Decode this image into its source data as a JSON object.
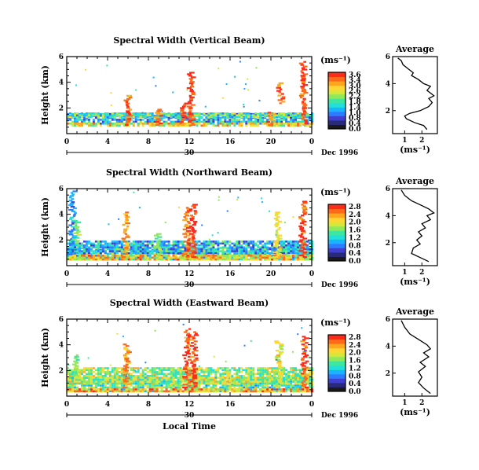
{
  "colors": {
    "colorbar": [
      "#1a1a1a",
      "#2a2a7a",
      "#3f3fd0",
      "#2d7bff",
      "#19b4ff",
      "#22e0d8",
      "#3ee6a0",
      "#8fe85a",
      "#d8e63a",
      "#ffd633",
      "#ffa61f",
      "#ff6a1a",
      "#ff2a1a"
    ]
  },
  "chart_data": [
    {
      "type": "heatmap",
      "title": "Spectral Width (Vertical Beam)",
      "ylabel": "Height (km)",
      "ylim": [
        0,
        6
      ],
      "yticks": [
        "2",
        "4",
        "6"
      ],
      "xlim": [
        0,
        24
      ],
      "xticks": [
        "0",
        "4",
        "8",
        "12",
        "16",
        "20",
        "0"
      ],
      "date_row": {
        "mid_label": "30",
        "end_label": "Dec 1996"
      },
      "colorbar": {
        "unit": "(ms⁻¹)",
        "labels": [
          "3.6",
          "3.4",
          "3.0",
          "2.6",
          "2.2",
          "1.8",
          "1.4",
          "1.0",
          "0.8",
          "0.4",
          "0.0"
        ]
      },
      "bands": [
        {
          "x": [
            0,
            24
          ],
          "y": [
            0.7,
            1.5
          ],
          "level": 0.35
        },
        {
          "x": [
            0,
            24
          ],
          "y": [
            1.2,
            1.55
          ],
          "level": 0.5
        },
        {
          "x": [
            0,
            24
          ],
          "y": [
            0.55,
            0.85
          ],
          "level": 0.7
        }
      ],
      "spikes": [
        {
          "x": 6.0,
          "y": [
            0.6,
            3.0
          ],
          "level": 0.95
        },
        {
          "x": 9.0,
          "y": [
            0.6,
            1.9
          ],
          "level": 0.9
        },
        {
          "x": 11.5,
          "y": [
            0.6,
            2.4
          ],
          "level": 0.95
        },
        {
          "x": 12.2,
          "y": [
            0.6,
            4.8
          ],
          "level": 0.97
        },
        {
          "x": 20.0,
          "y": [
            0.6,
            1.6
          ],
          "level": 0.9
        },
        {
          "x": 21.0,
          "y": [
            2.3,
            3.9
          ],
          "level": 0.92
        },
        {
          "x": 23.2,
          "y": [
            0.6,
            5.6
          ],
          "level": 0.97
        }
      ],
      "profile": {
        "title": "Average",
        "xlabel": "(ms⁻¹)",
        "xticks": [
          "1",
          "2"
        ],
        "yticks": [
          "2",
          "4",
          "6"
        ],
        "xlim": [
          0.3,
          2.9
        ],
        "ylim": [
          0.3,
          6
        ],
        "x": [
          2.3,
          2.1,
          1.6,
          1.1,
          1.0,
          1.3,
          1.9,
          2.4,
          2.6,
          2.4,
          2.7,
          2.5,
          2.3,
          2.5,
          2.1,
          1.8,
          1.4,
          1.5,
          1.2,
          0.9,
          0.8,
          0.6
        ],
        "y": [
          0.6,
          0.9,
          1.1,
          1.4,
          1.6,
          1.8,
          2.0,
          2.3,
          2.6,
          2.9,
          3.1,
          3.3,
          3.5,
          3.8,
          4.0,
          4.3,
          4.6,
          4.8,
          5.1,
          5.4,
          5.7,
          5.9
        ]
      }
    },
    {
      "type": "heatmap",
      "title": "Spectral Width (Northward Beam)",
      "ylabel": "Height (km)",
      "ylim": [
        0,
        6
      ],
      "yticks": [
        "2",
        "4",
        "6"
      ],
      "xlim": [
        0,
        24
      ],
      "xticks": [
        "0",
        "4",
        "8",
        "12",
        "16",
        "20",
        "0"
      ],
      "date_row": {
        "mid_label": "30",
        "end_label": "Dec 1996"
      },
      "colorbar": {
        "unit": "(ms⁻¹)",
        "labels": [
          "2.8",
          "2.4",
          "2.0",
          "1.6",
          "1.2",
          "0.8",
          "0.4",
          "0.0"
        ]
      },
      "bands": [
        {
          "x": [
            0,
            24
          ],
          "y": [
            0.4,
            1.3
          ],
          "level": 0.45
        },
        {
          "x": [
            0,
            24
          ],
          "y": [
            0.9,
            1.9
          ],
          "level": 0.35
        },
        {
          "x": [
            0,
            24
          ],
          "y": [
            0.4,
            0.8
          ],
          "level": 0.75
        }
      ],
      "spikes": [
        {
          "x": 0.6,
          "y": [
            0.8,
            5.8
          ],
          "level": 0.3
        },
        {
          "x": 1.0,
          "y": [
            1.5,
            3.5
          ],
          "level": 0.55
        },
        {
          "x": 5.8,
          "y": [
            0.6,
            4.2
          ],
          "level": 0.85
        },
        {
          "x": 9.0,
          "y": [
            0.6,
            2.5
          ],
          "level": 0.6
        },
        {
          "x": 11.8,
          "y": [
            0.6,
            4.5
          ],
          "level": 0.92
        },
        {
          "x": 12.4,
          "y": [
            0.6,
            4.8
          ],
          "level": 0.97
        },
        {
          "x": 20.7,
          "y": [
            0.6,
            4.2
          ],
          "level": 0.7
        },
        {
          "x": 23.1,
          "y": [
            0.6,
            5.0
          ],
          "level": 0.97
        }
      ],
      "profile": {
        "title": "Average",
        "xlabel": "(ms⁻¹)",
        "xticks": [
          "1",
          "2"
        ],
        "yticks": [
          "2",
          "4",
          "6"
        ],
        "xlim": [
          0.3,
          2.9
        ],
        "ylim": [
          0.3,
          6
        ],
        "x": [
          2.4,
          1.9,
          1.4,
          1.5,
          1.9,
          1.7,
          2.0,
          1.8,
          2.2,
          2.0,
          2.5,
          2.3,
          2.7,
          2.4,
          1.9,
          1.4,
          1.0,
          0.8
        ],
        "y": [
          0.6,
          0.9,
          1.2,
          1.6,
          1.9,
          2.2,
          2.5,
          2.8,
          3.1,
          3.4,
          3.7,
          4.0,
          4.2,
          4.5,
          4.8,
          5.1,
          5.5,
          5.9
        ]
      }
    },
    {
      "type": "heatmap",
      "title": "Spectral Width (Eastward Beam)",
      "ylabel": "Height (km)",
      "xlabel": "Local Time",
      "ylim": [
        0,
        6
      ],
      "yticks": [
        "2",
        "4",
        "6"
      ],
      "xlim": [
        0,
        24
      ],
      "xticks": [
        "0",
        "4",
        "8",
        "12",
        "16",
        "20",
        "0"
      ],
      "date_row": {
        "mid_label": "30",
        "end_label": "Dec 1996"
      },
      "colorbar": {
        "unit": "(ms⁻¹)",
        "labels": [
          "2.8",
          "2.4",
          "2.0",
          "1.6",
          "1.2",
          "0.8",
          "0.4",
          "0.0"
        ]
      },
      "bands": [
        {
          "x": [
            0,
            24
          ],
          "y": [
            0.3,
            1.4
          ],
          "level": 0.5
        },
        {
          "x": [
            0,
            24
          ],
          "y": [
            0.9,
            2.1
          ],
          "level": 0.6
        },
        {
          "x": [
            0,
            24
          ],
          "y": [
            0.3,
            0.6
          ],
          "level": 0.8
        }
      ],
      "spikes": [
        {
          "x": 1.0,
          "y": [
            1.2,
            3.2
          ],
          "level": 0.55
        },
        {
          "x": 5.9,
          "y": [
            0.6,
            4.0
          ],
          "level": 0.85
        },
        {
          "x": 11.8,
          "y": [
            0.6,
            5.2
          ],
          "level": 0.97
        },
        {
          "x": 12.5,
          "y": [
            0.6,
            5.0
          ],
          "level": 0.97
        },
        {
          "x": 16.0,
          "y": [
            0.6,
            2.0
          ],
          "level": 0.7
        },
        {
          "x": 20.8,
          "y": [
            0.6,
            4.3
          ],
          "level": 0.7
        },
        {
          "x": 23.3,
          "y": [
            0.6,
            4.6
          ],
          "level": 0.97
        }
      ],
      "profile": {
        "title": "Average",
        "xlabel": "(ms⁻¹)",
        "xticks": [
          "1",
          "2"
        ],
        "yticks": [
          "2",
          "4",
          "6"
        ],
        "xlim": [
          0.3,
          2.9
        ],
        "ylim": [
          0.3,
          6
        ],
        "x": [
          2.5,
          2.1,
          1.8,
          2.0,
          1.8,
          2.2,
          1.9,
          2.4,
          2.1,
          2.5,
          2.3,
          1.8,
          1.3,
          1.0,
          0.8
        ],
        "y": [
          0.5,
          0.9,
          1.3,
          1.7,
          2.1,
          2.5,
          2.8,
          3.2,
          3.5,
          3.8,
          4.1,
          4.5,
          4.9,
          5.4,
          5.9
        ]
      }
    }
  ]
}
